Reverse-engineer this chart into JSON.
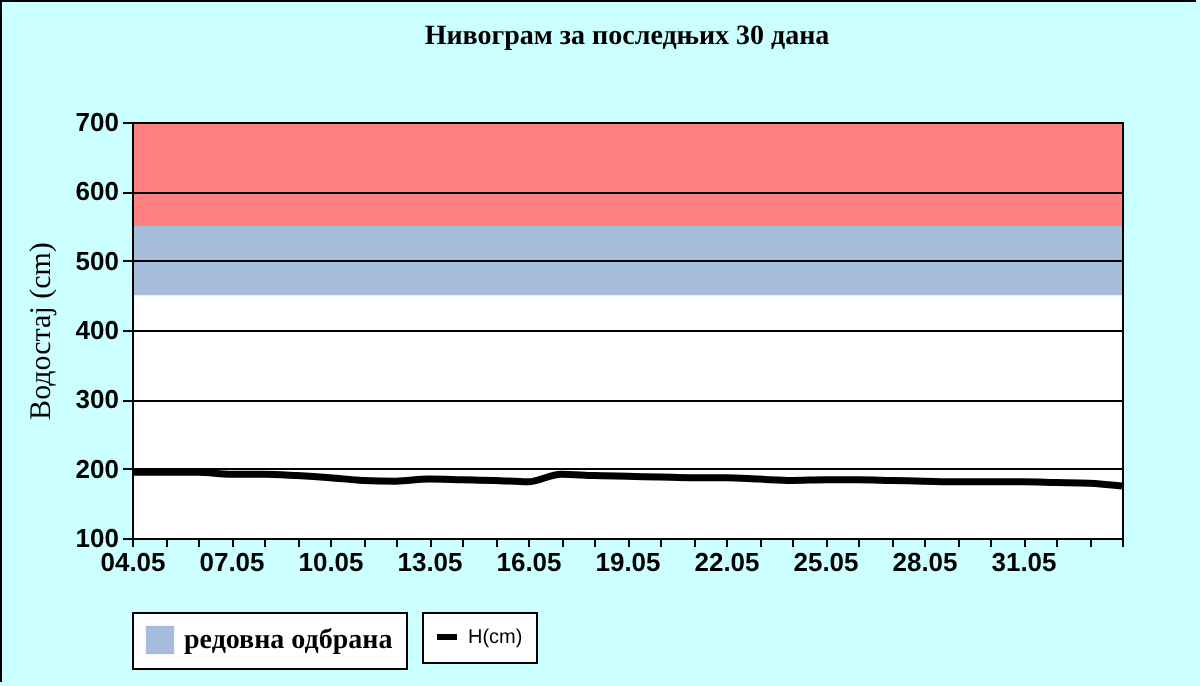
{
  "chart_data": {
    "type": "line",
    "title": "Нивограм за последњих 30 дана",
    "ylabel": "Водостај (cm)",
    "categories": [
      "04.05",
      null,
      null,
      "07.05",
      null,
      null,
      "10.05",
      null,
      null,
      "13.05",
      null,
      null,
      "16.05",
      null,
      null,
      "19.05",
      null,
      null,
      "22.05",
      null,
      null,
      "25.05",
      null,
      null,
      "28.05",
      null,
      null,
      "31.05",
      null,
      null,
      null
    ],
    "series": [
      {
        "name": "H(cm)",
        "color": "#000000",
        "values": [
          195,
          195,
          195,
          192,
          192,
          190,
          187,
          183,
          182,
          185,
          184,
          183,
          181,
          192,
          190,
          189,
          188,
          187,
          187,
          185,
          183,
          184,
          184,
          183,
          182,
          181,
          181,
          181,
          180,
          179,
          175
        ]
      }
    ],
    "ylim": [
      100,
      700
    ],
    "yticks": [
      100,
      200,
      300,
      400,
      500,
      600,
      700
    ],
    "grid": "y",
    "legend": "bottom",
    "bands": [
      {
        "axis": "y",
        "from": 450,
        "to": 550,
        "label": "редовна одбрана",
        "color": "#a6bedb"
      },
      {
        "axis": "y",
        "from": 550,
        "to": 700,
        "color": "#ff8080"
      }
    ]
  }
}
